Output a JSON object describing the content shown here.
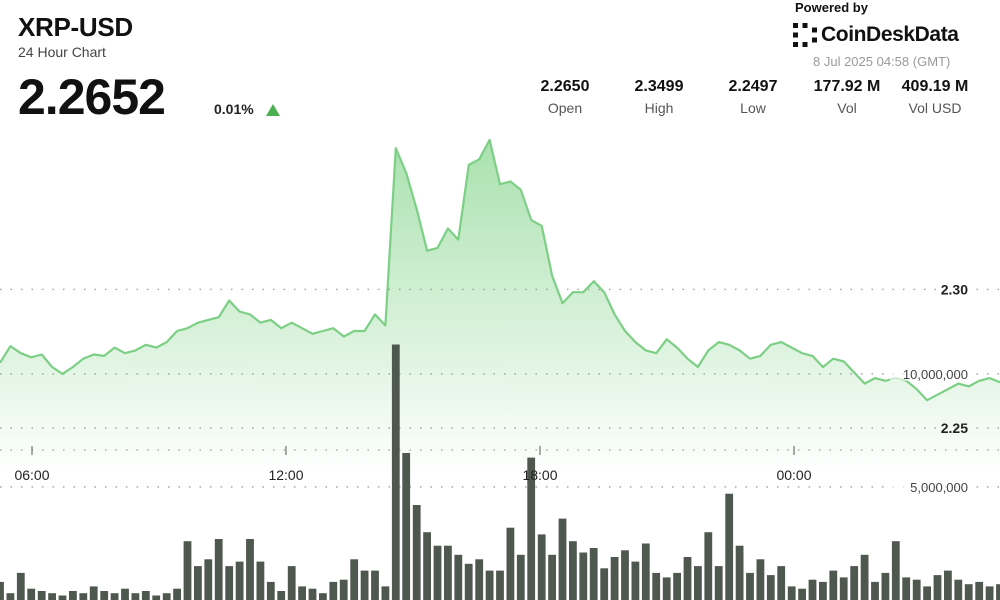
{
  "header": {
    "title": "XRP-USD",
    "subtitle": "24 Hour Chart",
    "price": "2.2652",
    "change": "0.01%",
    "powered_by": "Powered by",
    "brand": "CoinDeskData",
    "timestamp": "8 Jul 2025 04:58 (GMT)"
  },
  "stats": [
    {
      "value": "2.2650",
      "label": "Open"
    },
    {
      "value": "2.3499",
      "label": "High"
    },
    {
      "value": "2.2497",
      "label": "Low"
    },
    {
      "value": "177.92 M",
      "label": "Vol"
    },
    {
      "value": "409.19 M",
      "label": "Vol USD"
    }
  ],
  "colors": {
    "line": "#7ccf85",
    "area_top": "#9bdca1",
    "area_bottom": "#ffffff",
    "bar": "#4f584f",
    "arrow": "#4caf50"
  },
  "chart_data": {
    "type": "line",
    "title": "XRP-USD",
    "price_ticks": [
      2.3,
      2.25
    ],
    "price_tick_labels": [
      "2.30",
      "2.25"
    ],
    "time_ticks": [
      "06:00",
      "12:00",
      "18:00",
      "00:00"
    ],
    "volume_ticks": [
      "10,000,000",
      "5,000,000"
    ],
    "price_range": [
      2.233,
      2.363
    ],
    "volume_range": [
      0,
      11500000
    ],
    "grid": true,
    "series": [
      {
        "values": [
          2.2735,
          2.2795,
          2.277,
          2.2755,
          2.2765,
          2.272,
          2.2695,
          2.272,
          2.275,
          2.2765,
          2.276,
          2.279,
          2.277,
          2.278,
          2.28,
          2.279,
          2.281,
          2.285,
          2.286,
          2.288,
          2.289,
          2.29,
          2.296,
          2.292,
          2.291,
          2.288,
          2.289,
          2.286,
          2.288,
          2.286,
          2.284,
          2.285,
          2.286,
          2.283,
          2.285,
          2.285,
          2.291,
          2.287,
          2.351,
          2.342,
          2.329,
          2.314,
          2.315,
          2.322,
          2.318,
          2.345,
          2.347,
          2.354,
          2.338,
          2.339,
          2.336,
          2.325,
          2.323,
          2.305,
          2.295,
          2.299,
          2.299,
          2.303,
          2.299,
          2.291,
          2.285,
          2.281,
          2.278,
          2.277,
          2.282,
          2.279,
          2.275,
          2.272,
          2.278,
          2.281,
          2.28,
          2.278,
          2.275,
          2.276,
          2.28,
          2.281,
          2.279,
          2.277,
          2.276,
          2.272,
          2.275,
          2.274,
          2.27,
          2.266,
          2.268,
          2.267,
          2.268,
          2.267,
          2.264,
          2.26,
          2.262,
          2.264,
          2.266,
          2.265,
          2.267,
          2.268,
          2.2665
        ],
        "volumes": [
          800000,
          300000,
          1200000,
          500000,
          400000,
          300000,
          200000,
          400000,
          300000,
          600000,
          400000,
          300000,
          500000,
          300000,
          400000,
          200000,
          300000,
          500000,
          2600000,
          1500000,
          1800000,
          2700000,
          1500000,
          1700000,
          2700000,
          1700000,
          800000,
          400000,
          1500000,
          600000,
          500000,
          300000,
          800000,
          900000,
          1800000,
          1300000,
          1300000,
          600000,
          11300000,
          6500000,
          4200000,
          3000000,
          2400000,
          2400000,
          2000000,
          1600000,
          1800000,
          1300000,
          1300000,
          3200000,
          2000000,
          6300000,
          2900000,
          2000000,
          3600000,
          2600000,
          2100000,
          2300000,
          1400000,
          1900000,
          2200000,
          1700000,
          2500000,
          1200000,
          1000000,
          1200000,
          1900000,
          1500000,
          3000000,
          1500000,
          4700000,
          2400000,
          1200000,
          1800000,
          1100000,
          1500000,
          600000,
          500000,
          900000,
          800000,
          1300000,
          1000000,
          1500000,
          2000000,
          800000,
          1200000,
          2600000,
          1000000,
          900000,
          600000,
          1100000,
          1300000,
          900000,
          700000,
          800000,
          600000,
          700000
        ]
      }
    ]
  }
}
